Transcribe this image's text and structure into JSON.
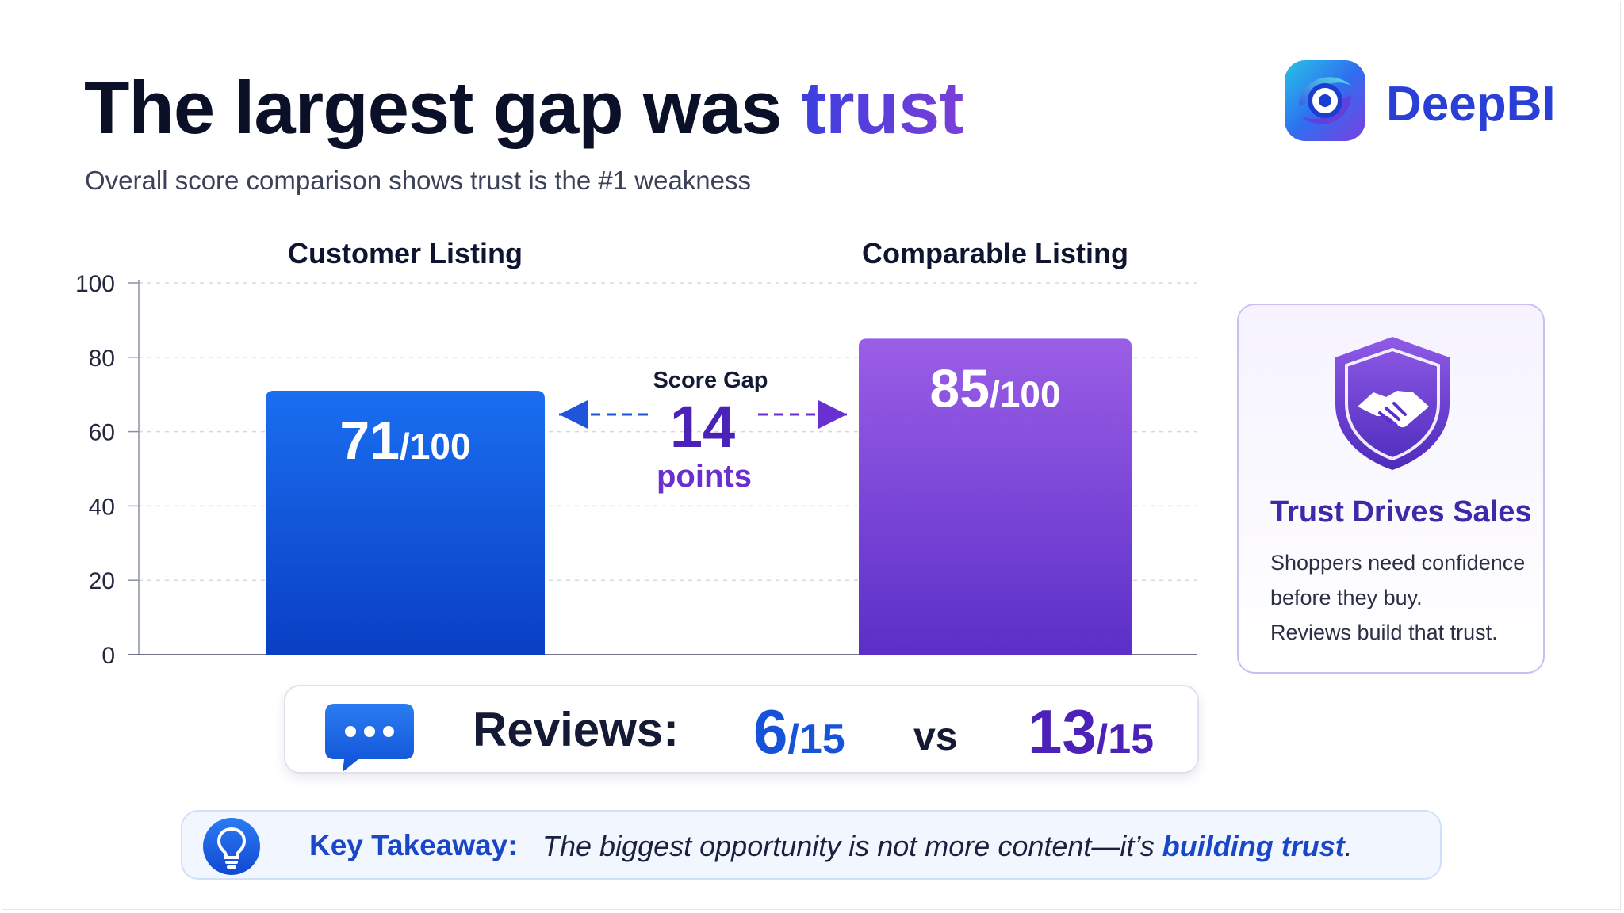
{
  "header": {
    "title_main": "The largest gap was",
    "title_accent": "trust",
    "subtitle": "Overall score comparison shows trust is the #1 weakness"
  },
  "brand": {
    "name": "DeepBI",
    "logo_icon": "deepbi-logo-icon"
  },
  "chart_data": {
    "type": "bar",
    "categories": [
      "Customer Listing",
      "Comparable Listing"
    ],
    "values": [
      71,
      85
    ],
    "value_labels": [
      {
        "big": "71",
        "small": "/100"
      },
      {
        "big": "85",
        "small": "/100"
      }
    ],
    "ylim": [
      0,
      100
    ],
    "yticks": [
      0,
      20,
      40,
      60,
      80,
      100
    ],
    "grid": true,
    "colors": {
      "bar1_top": "#1a6ef0",
      "bar1_bottom": "#0a3fc4",
      "bar2_top": "#9b5ee6",
      "bar2_bottom": "#5b2fc8"
    },
    "gap_annotation": {
      "label": "Score Gap",
      "value": "14",
      "unit": "points"
    }
  },
  "trust_card": {
    "icon": "shield-handshake-icon",
    "title": "Trust Drives Sales",
    "lines": [
      "Shoppers need confidence",
      "before they buy.",
      "Reviews build that trust."
    ]
  },
  "reviews": {
    "icon": "chat-bubble-icon",
    "label": "Reviews:",
    "customer_value": "6",
    "customer_total": "/15",
    "vs": "vs",
    "comparable_value": "13",
    "comparable_total": "/15"
  },
  "takeaway": {
    "icon": "lightbulb-icon",
    "label": "Key Takeaway:",
    "text_before": "The biggest opportunity is not more content—it’s ",
    "text_emphasis": "building trust",
    "text_after": "."
  }
}
